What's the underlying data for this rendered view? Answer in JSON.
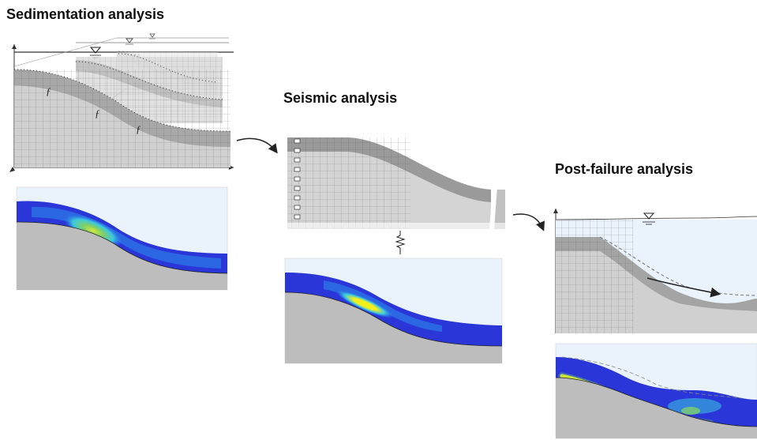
{
  "titles": {
    "sedimentation": "Sedimentation analysis",
    "seismic": "Seismic analysis",
    "post_failure": "Post-failure analysis"
  },
  "colors": {
    "water": "#eaf3fb",
    "soil_light": "#d4d4d4",
    "soil_mid": "#bdbdbd",
    "layer_dark": "#9a9a9a",
    "contour_deep": "#2a36d8",
    "contour_mid": "#2c7be8",
    "contour_cyan": "#3ac8e0",
    "contour_green": "#7ed06a",
    "contour_yellow": "#f2ee22"
  },
  "icons": [
    "water-level-icon",
    "fault-symbol-icon",
    "seismic-wave-icon",
    "flow-arrow-icon",
    "dashpot-icon"
  ]
}
